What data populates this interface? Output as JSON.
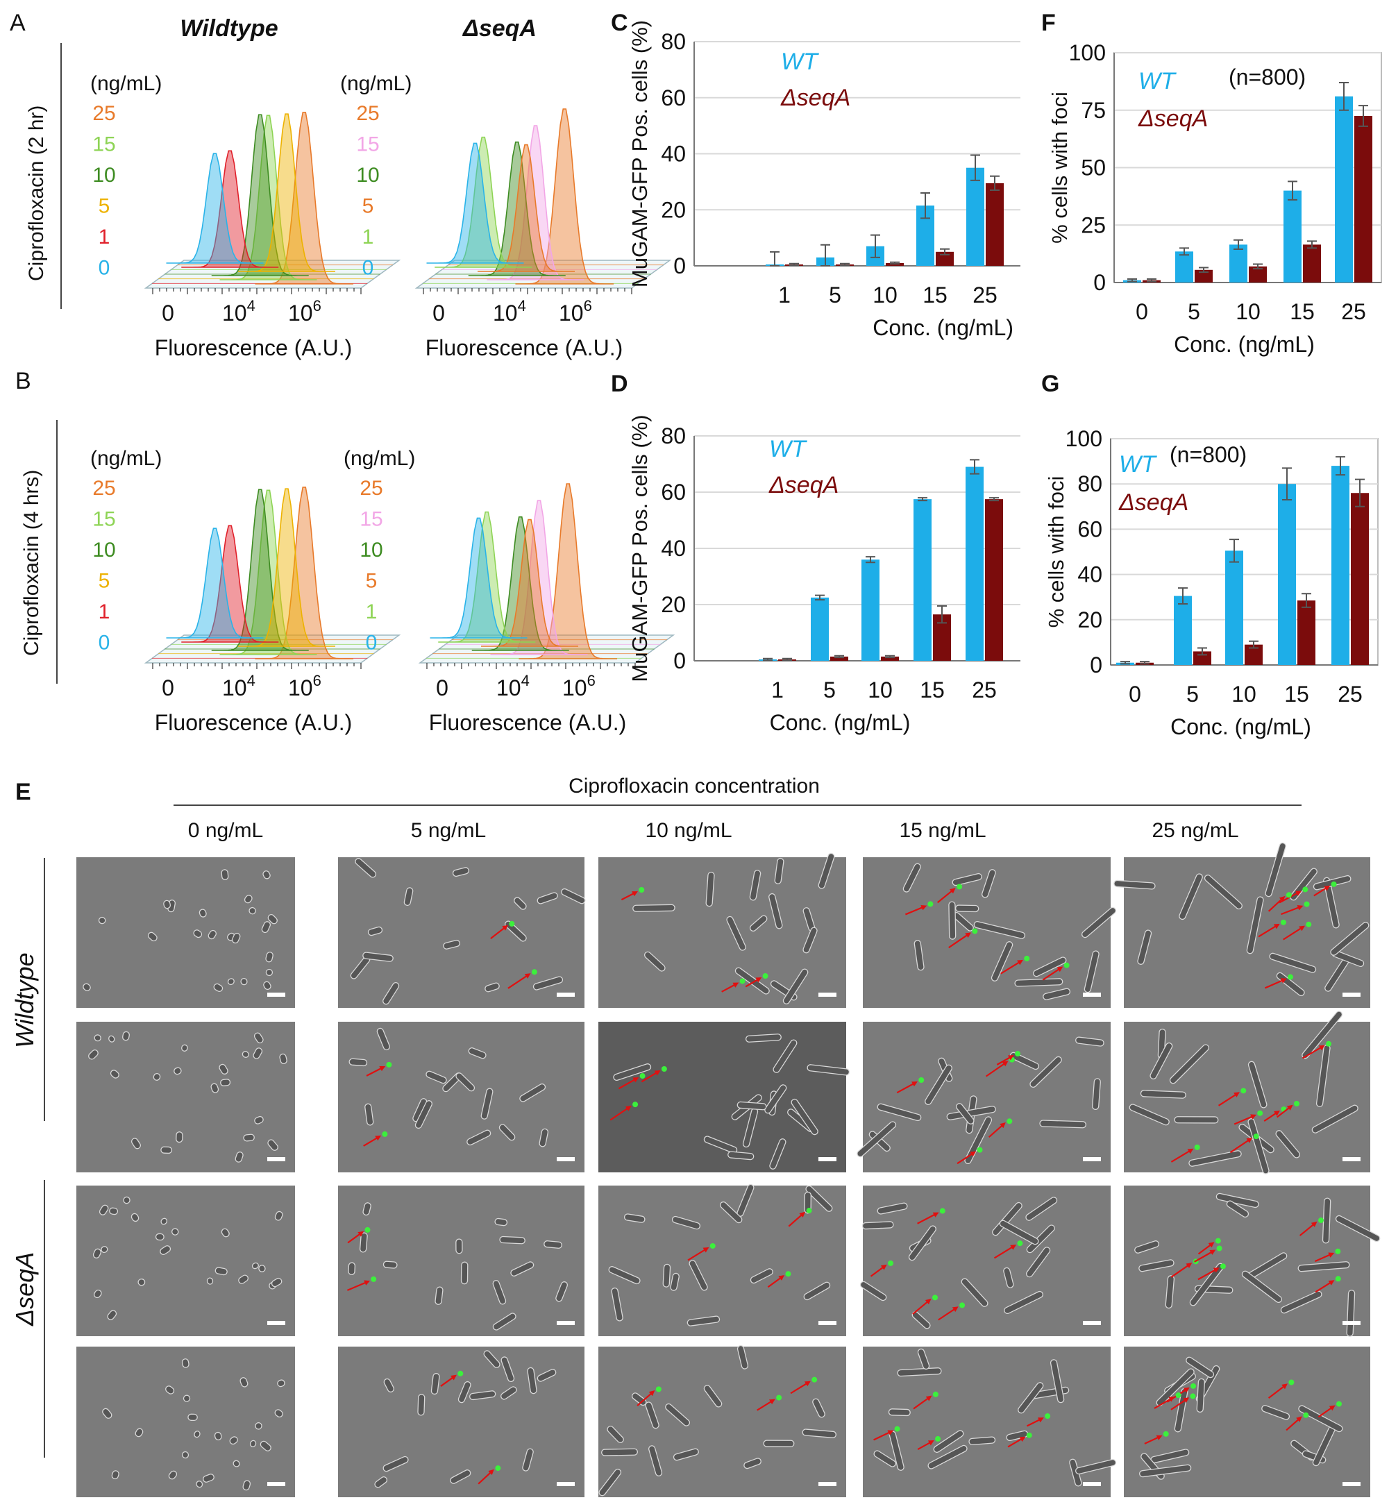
{
  "panel_letters": {
    "A": "A",
    "B": "B",
    "C": "C",
    "D": "D",
    "E": "E",
    "F": "F",
    "G": "G"
  },
  "colors": {
    "wt": "#1EAEE8",
    "seqA": "#7B0C0C",
    "grid": "#d9d9d9",
    "arrow": "#e01010",
    "foci": "#3CF03C",
    "micro_bg": "#7b7b7b",
    "micro_bg_dark": "#5c5c5c"
  },
  "flow": {
    "wildtype_title": "Wildtype",
    "seqA_title": "ΔseqA",
    "unit_label": "(ng/mL)",
    "conc_labels": [
      "25",
      "15",
      "10",
      "5",
      "1",
      "0"
    ],
    "conc_colors_wt": [
      "#E87A2A",
      "#8ED455",
      "#3E8C22",
      "#EDB200",
      "#E0202A",
      "#2AB3E8"
    ],
    "conc_colors_seqA": [
      "#E87A2A",
      "#F2A6E6",
      "#3E8C22",
      "#E87A2A",
      "#8ED455",
      "#2AB3E8"
    ],
    "x_ticks": [
      "0",
      "10",
      "4",
      "10",
      "6"
    ],
    "x_label": "Fluorescence (A.U.)",
    "row_labels": [
      "Ciprofloxacin  (2 hr)",
      "Ciprofloxacin (4 hrs)"
    ]
  },
  "chart_data": [
    {
      "id": "C",
      "type": "bar",
      "title": "",
      "categories": [
        "1",
        "5",
        "10",
        "15",
        "25"
      ],
      "series": [
        {
          "name": "WT",
          "values": [
            0.5,
            3,
            7,
            21.5,
            35
          ],
          "errors": [
            4.5,
            4.5,
            4,
            4.5,
            4.5
          ]
        },
        {
          "name": "ΔseqA",
          "values": [
            0.5,
            0.5,
            1,
            5,
            29.5
          ],
          "errors": [
            0.3,
            0.3,
            0.3,
            1,
            2.5
          ]
        }
      ],
      "xlabel": "Conc. (ng/mL)",
      "ylabel": "MuGAM-GFP Pos. cells (%)",
      "ylim": [
        0,
        80
      ],
      "yticks": [
        "0",
        "20",
        "40",
        "60",
        "80"
      ],
      "grid": true,
      "annotation": ""
    },
    {
      "id": "D",
      "type": "bar",
      "title": "",
      "categories": [
        "1",
        "5",
        "10",
        "15",
        "25"
      ],
      "series": [
        {
          "name": "WT",
          "values": [
            0.5,
            22.5,
            36,
            57.5,
            69
          ],
          "errors": [
            0.3,
            0.8,
            1,
            0.5,
            2.5
          ]
        },
        {
          "name": "ΔseqA",
          "values": [
            0.5,
            1.5,
            1.5,
            16.5,
            57.5
          ],
          "errors": [
            0.3,
            0.3,
            0.3,
            3,
            0.5
          ]
        }
      ],
      "xlabel": "Conc. (ng/mL)",
      "ylabel": "MuGAM-GFP Pos. cells (%)",
      "ylim": [
        0,
        80
      ],
      "yticks": [
        "0",
        "20",
        "40",
        "60",
        "80"
      ],
      "grid": true,
      "annotation": ""
    },
    {
      "id": "F",
      "type": "bar",
      "title": "",
      "categories": [
        "0",
        "5",
        "10",
        "15",
        "25"
      ],
      "series": [
        {
          "name": "WT",
          "values": [
            1,
            13.5,
            16.5,
            40,
            81
          ],
          "errors": [
            0.5,
            1.5,
            2,
            4,
            6
          ]
        },
        {
          "name": "ΔseqA",
          "values": [
            1,
            5.5,
            7,
            16.5,
            72.5
          ],
          "errors": [
            0.5,
            1,
            1,
            1.5,
            4.5
          ]
        }
      ],
      "xlabel": "Conc. (ng/mL)",
      "ylabel": "% cells with foci",
      "ylim": [
        0,
        100
      ],
      "yticks": [
        "0",
        "25",
        "50",
        "75",
        "100"
      ],
      "grid": true,
      "annotation": "(n=800)"
    },
    {
      "id": "G",
      "type": "bar",
      "title": "",
      "categories": [
        "0",
        "5",
        "10",
        "15",
        "25"
      ],
      "series": [
        {
          "name": "WT",
          "values": [
            1,
            30.5,
            50.5,
            80,
            88
          ],
          "errors": [
            0.5,
            3.5,
            5,
            7,
            4
          ]
        },
        {
          "name": "ΔseqA",
          "values": [
            1,
            6,
            9,
            28.5,
            76
          ],
          "errors": [
            0.5,
            1.5,
            1.5,
            3,
            6
          ]
        }
      ],
      "xlabel": "Conc. (ng/mL)",
      "ylabel": "% cells with foci",
      "ylim": [
        0,
        100
      ],
      "yticks": [
        "0",
        "20",
        "40",
        "60",
        "80",
        "100"
      ],
      "grid": true,
      "annotation": "(n=800)"
    }
  ],
  "micro": {
    "header": "Ciprofloxacin  concentration",
    "columns": [
      "0 ng/mL",
      "5 ng/mL",
      "10 ng/mL",
      "15 ng/mL",
      "25 ng/mL"
    ],
    "row_groups": [
      "Wildtype",
      "ΔseqA"
    ]
  }
}
